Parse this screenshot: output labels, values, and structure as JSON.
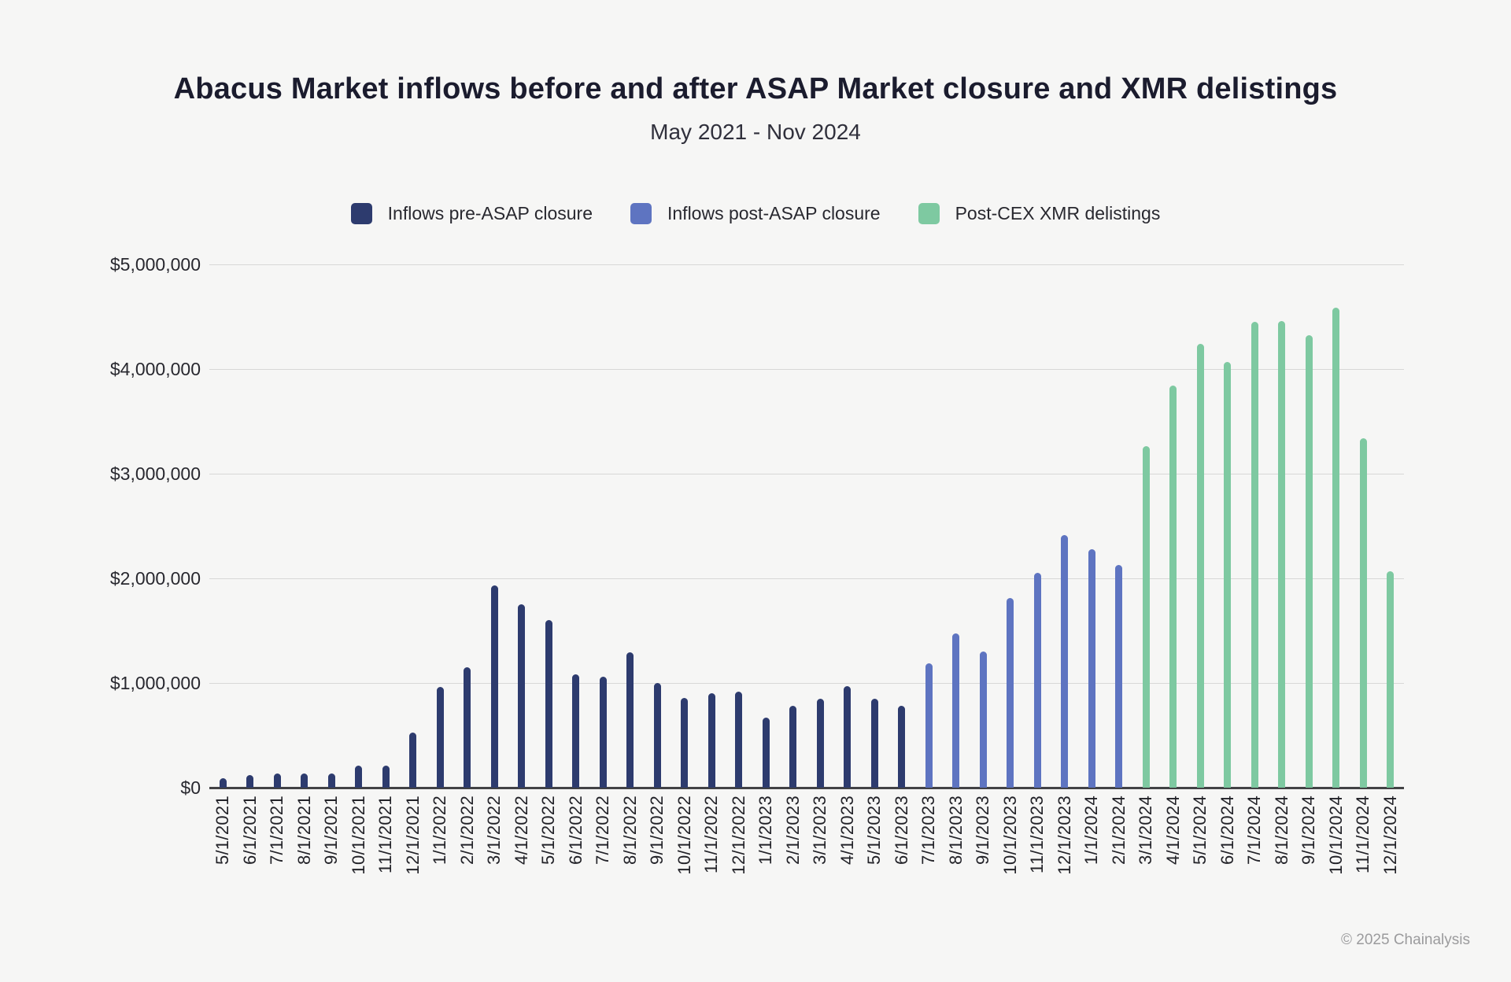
{
  "footer": {
    "copyright": "© 2025 Chainalysis"
  },
  "chart_data": {
    "type": "bar",
    "title": "Abacus Market inflows before and after ASAP Market closure and XMR delistings",
    "subtitle": "May 2021 - Nov 2024",
    "xlabel": "",
    "ylabel": "",
    "ylim": [
      0,
      5000000
    ],
    "ytick_interval": 1000000,
    "ytick_prefix": "$",
    "grid": true,
    "legend_position": "top-center",
    "background_color": "#f6f6f5",
    "categories": [
      "5/1/2021",
      "6/1/2021",
      "7/1/2021",
      "8/1/2021",
      "9/1/2021",
      "10/1/2021",
      "11/1/2021",
      "12/1/2021",
      "1/1/2022",
      "2/1/2022",
      "3/1/2022",
      "4/1/2022",
      "5/1/2022",
      "6/1/2022",
      "7/1/2022",
      "8/1/2022",
      "9/1/2022",
      "10/1/2022",
      "11/1/2022",
      "12/1/2022",
      "1/1/2023",
      "2/1/2023",
      "3/1/2023",
      "4/1/2023",
      "5/1/2023",
      "6/1/2023",
      "7/1/2023",
      "8/1/2023",
      "9/1/2023",
      "10/1/2023",
      "11/1/2023",
      "12/1/2023",
      "1/1/2024",
      "2/1/2024",
      "3/1/2024",
      "4/1/2024",
      "5/1/2024",
      "6/1/2024",
      "7/1/2024",
      "8/1/2024",
      "9/1/2024",
      "10/1/2024",
      "11/1/2024",
      "12/1/2024"
    ],
    "series": [
      {
        "name": "Inflows pre-ASAP closure",
        "color": "#2d3b6e",
        "values": [
          90000,
          120000,
          135000,
          135000,
          135000,
          210000,
          210000,
          530000,
          960000,
          1150000,
          1930000,
          1750000,
          1600000,
          1080000,
          1060000,
          1290000,
          1000000,
          860000,
          900000,
          920000,
          670000,
          780000,
          850000,
          970000,
          850000,
          780000,
          null,
          null,
          null,
          null,
          null,
          null,
          null,
          null,
          null,
          null,
          null,
          null,
          null,
          null,
          null,
          null,
          null,
          null
        ]
      },
      {
        "name": "Inflows post-ASAP closure",
        "color": "#5e74c1",
        "values": [
          null,
          null,
          null,
          null,
          null,
          null,
          null,
          null,
          null,
          null,
          null,
          null,
          null,
          null,
          null,
          null,
          null,
          null,
          null,
          null,
          null,
          null,
          null,
          null,
          null,
          null,
          1190000,
          1470000,
          1300000,
          1810000,
          2050000,
          2410000,
          2280000,
          2130000,
          null,
          null,
          null,
          null,
          null,
          null,
          null,
          null,
          null,
          null
        ]
      },
      {
        "name": "Post-CEX XMR delistings",
        "color": "#7ec9a1",
        "values": [
          null,
          null,
          null,
          null,
          null,
          null,
          null,
          null,
          null,
          null,
          null,
          null,
          null,
          null,
          null,
          null,
          null,
          null,
          null,
          null,
          null,
          null,
          null,
          null,
          null,
          null,
          null,
          null,
          null,
          null,
          null,
          null,
          null,
          null,
          3260000,
          3840000,
          4240000,
          4070000,
          4450000,
          4460000,
          4320000,
          4590000,
          3340000,
          2070000
        ]
      }
    ]
  }
}
